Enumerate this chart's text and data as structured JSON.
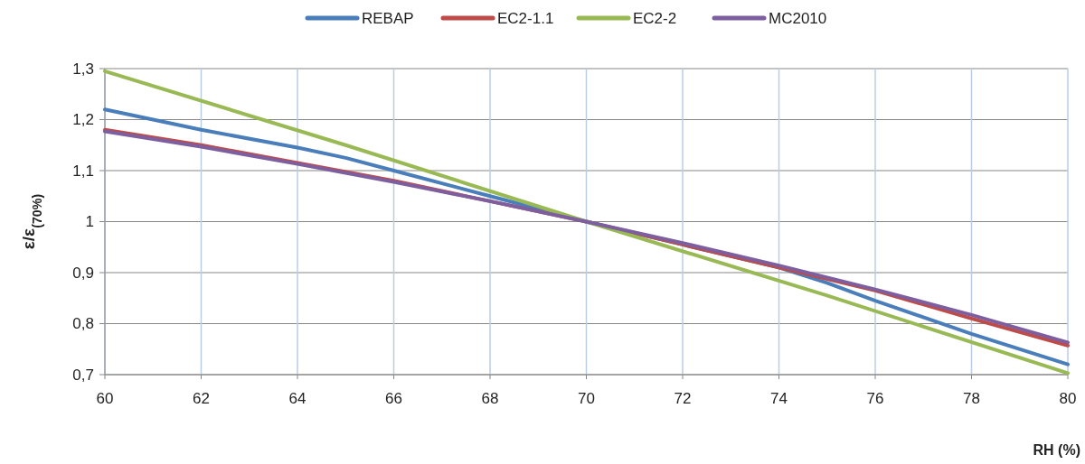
{
  "chart_data": {
    "type": "line",
    "xlabel": "RH (%)",
    "ylabel": "ε/ε$_{(70%)}$",
    "xlim": [
      60,
      80
    ],
    "xticks": [
      60,
      62,
      64,
      66,
      68,
      70,
      72,
      74,
      76,
      78,
      80
    ],
    "ylim": [
      0.7,
      1.3
    ],
    "yticks": [
      {
        "value": 0.7,
        "label": "0,7"
      },
      {
        "value": 0.8,
        "label": "0,8"
      },
      {
        "value": 0.9,
        "label": "0,9"
      },
      {
        "value": 1,
        "label": "1"
      },
      {
        "value": 1.1,
        "label": "1,1"
      },
      {
        "value": 1.2,
        "label": "1,2"
      },
      {
        "value": 1.3,
        "label": "1,3"
      }
    ],
    "grid": true,
    "legend": "top",
    "marker": "none",
    "line_style": "solid",
    "series": [
      {
        "name": "REBAP",
        "color": "#4a7ebb",
        "x": [
          60,
          62,
          64,
          65,
          66,
          68,
          70,
          72,
          74,
          75,
          76,
          78,
          80
        ],
        "values": [
          1.22,
          1.18,
          1.145,
          1.125,
          1.1,
          1.05,
          1.0,
          0.955,
          0.91,
          0.88,
          0.845,
          0.78,
          0.72
        ]
      },
      {
        "name": "EC2-1.1",
        "color": "#be4b48",
        "x": [
          60,
          62,
          64,
          66,
          68,
          70,
          72,
          74,
          76,
          78,
          80
        ],
        "values": [
          1.18,
          1.15,
          1.115,
          1.08,
          1.04,
          1.0,
          0.955,
          0.91,
          0.865,
          0.81,
          0.757
        ]
      },
      {
        "name": "EC2-2",
        "color": "#98b954",
        "x": [
          60,
          65,
          70,
          75,
          80
        ],
        "values": [
          1.295,
          1.15,
          1.0,
          0.855,
          0.703
        ]
      },
      {
        "name": "MC2010",
        "color": "#7d5fa0",
        "x": [
          60,
          62,
          64,
          66,
          68,
          70,
          72,
          74,
          76,
          78,
          80
        ],
        "values": [
          1.177,
          1.147,
          1.113,
          1.078,
          1.04,
          1.0,
          0.958,
          0.914,
          0.867,
          0.817,
          0.763
        ]
      }
    ]
  }
}
